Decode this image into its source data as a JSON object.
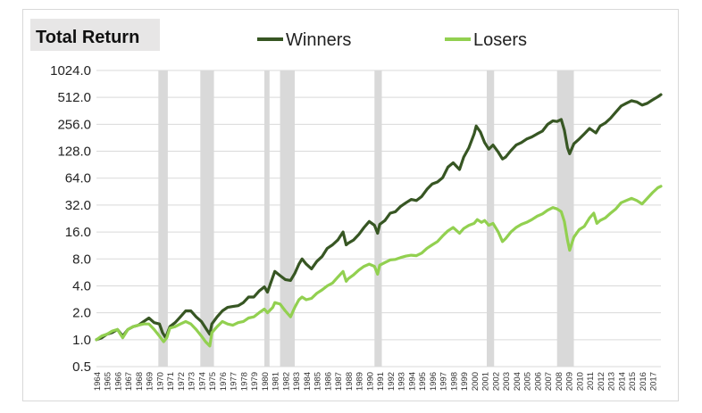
{
  "chart_data": {
    "type": "line",
    "title": "Total Return",
    "scale": "log2",
    "ylim": [
      0.5,
      1024
    ],
    "y_ticks": [
      "0.5",
      "1.0",
      "2.0",
      "4.0",
      "8.0",
      "16.0",
      "32.0",
      "64.0",
      "128.0",
      "256.0",
      "512.0",
      "1024.0"
    ],
    "y_tick_values": [
      0.5,
      1,
      2,
      4,
      8,
      16,
      32,
      64,
      128,
      256,
      512,
      1024
    ],
    "xlim": [
      1964,
      2017.8
    ],
    "x_ticks": [
      "1964",
      "1965",
      "1966",
      "1967",
      "1968",
      "1969",
      "1970",
      "1971",
      "1972",
      "1973",
      "1974",
      "1975",
      "1976",
      "1977",
      "1978",
      "1979",
      "1980",
      "1981",
      "1982",
      "1983",
      "1984",
      "1985",
      "1986",
      "1987",
      "1988",
      "1989",
      "1990",
      "1991",
      "1992",
      "1993",
      "1994",
      "1995",
      "1996",
      "1997",
      "1998",
      "1999",
      "2000",
      "2001",
      "2002",
      "2003",
      "2004",
      "2005",
      "2006",
      "2007",
      "2008",
      "2009",
      "2010",
      "2011",
      "2012",
      "2013",
      "2014",
      "2015",
      "2016",
      "2017"
    ],
    "legend_position": "top",
    "grid": "horizontal",
    "recessions": [
      [
        1969.9,
        1970.8
      ],
      [
        1973.9,
        1975.2
      ],
      [
        1980.0,
        1980.5
      ],
      [
        1981.5,
        1982.9
      ],
      [
        1990.5,
        1991.2
      ],
      [
        2001.2,
        2001.9
      ],
      [
        2007.9,
        2009.5
      ]
    ],
    "series": [
      {
        "name": "Winners",
        "color": "#375623",
        "points": [
          [
            1964.0,
            1.0
          ],
          [
            1964.5,
            1.05
          ],
          [
            1965.0,
            1.15
          ],
          [
            1965.5,
            1.2
          ],
          [
            1966.0,
            1.3
          ],
          [
            1966.5,
            1.1
          ],
          [
            1967.0,
            1.3
          ],
          [
            1967.5,
            1.4
          ],
          [
            1968.0,
            1.45
          ],
          [
            1968.5,
            1.6
          ],
          [
            1969.0,
            1.75
          ],
          [
            1969.5,
            1.55
          ],
          [
            1970.0,
            1.5
          ],
          [
            1970.3,
            1.2
          ],
          [
            1970.6,
            1.05
          ],
          [
            1971.0,
            1.4
          ],
          [
            1971.5,
            1.55
          ],
          [
            1972.0,
            1.8
          ],
          [
            1972.5,
            2.1
          ],
          [
            1973.0,
            2.1
          ],
          [
            1973.5,
            1.8
          ],
          [
            1974.0,
            1.6
          ],
          [
            1974.5,
            1.3
          ],
          [
            1974.8,
            1.15
          ],
          [
            1975.0,
            1.5
          ],
          [
            1975.5,
            1.8
          ],
          [
            1976.0,
            2.1
          ],
          [
            1976.5,
            2.3
          ],
          [
            1977.0,
            2.35
          ],
          [
            1977.5,
            2.4
          ],
          [
            1978.0,
            2.6
          ],
          [
            1978.5,
            3.0
          ],
          [
            1979.0,
            3.0
          ],
          [
            1979.5,
            3.5
          ],
          [
            1980.0,
            3.9
          ],
          [
            1980.3,
            3.4
          ],
          [
            1980.8,
            5.0
          ],
          [
            1981.0,
            5.8
          ],
          [
            1981.5,
            5.2
          ],
          [
            1982.0,
            4.7
          ],
          [
            1982.5,
            4.6
          ],
          [
            1982.9,
            5.5
          ],
          [
            1983.3,
            7.0
          ],
          [
            1983.6,
            8.0
          ],
          [
            1984.0,
            7.0
          ],
          [
            1984.5,
            6.2
          ],
          [
            1985.0,
            7.5
          ],
          [
            1985.5,
            8.5
          ],
          [
            1986.0,
            10.5
          ],
          [
            1986.5,
            11.5
          ],
          [
            1987.0,
            13.0
          ],
          [
            1987.5,
            16.0
          ],
          [
            1987.8,
            11.5
          ],
          [
            1988.0,
            12.0
          ],
          [
            1988.5,
            13.0
          ],
          [
            1989.0,
            15.0
          ],
          [
            1989.5,
            18.0
          ],
          [
            1990.0,
            21.0
          ],
          [
            1990.5,
            19.0
          ],
          [
            1990.8,
            15.5
          ],
          [
            1991.0,
            19.5
          ],
          [
            1991.5,
            21.5
          ],
          [
            1992.0,
            26.0
          ],
          [
            1992.5,
            27.0
          ],
          [
            1993.0,
            31.0
          ],
          [
            1993.5,
            34.0
          ],
          [
            1994.0,
            37.0
          ],
          [
            1994.5,
            36.0
          ],
          [
            1995.0,
            40.0
          ],
          [
            1995.5,
            48.0
          ],
          [
            1996.0,
            55.0
          ],
          [
            1996.5,
            58.0
          ],
          [
            1997.0,
            65.0
          ],
          [
            1997.5,
            85.0
          ],
          [
            1998.0,
            95.0
          ],
          [
            1998.6,
            80.0
          ],
          [
            1999.0,
            110.0
          ],
          [
            1999.5,
            140.0
          ],
          [
            2000.0,
            200.0
          ],
          [
            2000.2,
            245.0
          ],
          [
            2000.6,
            210.0
          ],
          [
            2001.0,
            160.0
          ],
          [
            2001.4,
            135.0
          ],
          [
            2001.8,
            150.0
          ],
          [
            2002.3,
            125.0
          ],
          [
            2002.7,
            105.0
          ],
          [
            2003.0,
            110.0
          ],
          [
            2003.5,
            130.0
          ],
          [
            2004.0,
            150.0
          ],
          [
            2004.5,
            160.0
          ],
          [
            2005.0,
            175.0
          ],
          [
            2005.5,
            185.0
          ],
          [
            2006.0,
            200.0
          ],
          [
            2006.5,
            215.0
          ],
          [
            2007.0,
            255.0
          ],
          [
            2007.5,
            280.0
          ],
          [
            2007.9,
            275.0
          ],
          [
            2008.3,
            290.0
          ],
          [
            2008.6,
            220.0
          ],
          [
            2008.9,
            140.0
          ],
          [
            2009.1,
            120.0
          ],
          [
            2009.5,
            155.0
          ],
          [
            2010.0,
            175.0
          ],
          [
            2010.5,
            200.0
          ],
          [
            2011.0,
            230.0
          ],
          [
            2011.6,
            205.0
          ],
          [
            2012.0,
            245.0
          ],
          [
            2012.5,
            265.0
          ],
          [
            2013.0,
            300.0
          ],
          [
            2013.5,
            350.0
          ],
          [
            2014.0,
            410.0
          ],
          [
            2014.5,
            440.0
          ],
          [
            2015.0,
            470.0
          ],
          [
            2015.5,
            455.0
          ],
          [
            2016.0,
            420.0
          ],
          [
            2016.5,
            440.0
          ],
          [
            2017.0,
            480.0
          ],
          [
            2017.5,
            520.0
          ],
          [
            2017.8,
            550.0
          ]
        ]
      },
      {
        "name": "Losers",
        "color": "#92d050",
        "points": [
          [
            1964.0,
            1.0
          ],
          [
            1964.5,
            1.1
          ],
          [
            1965.0,
            1.15
          ],
          [
            1965.5,
            1.25
          ],
          [
            1966.0,
            1.3
          ],
          [
            1966.5,
            1.05
          ],
          [
            1967.0,
            1.3
          ],
          [
            1967.5,
            1.4
          ],
          [
            1968.0,
            1.45
          ],
          [
            1968.5,
            1.5
          ],
          [
            1969.0,
            1.5
          ],
          [
            1969.5,
            1.3
          ],
          [
            1970.0,
            1.1
          ],
          [
            1970.4,
            0.95
          ],
          [
            1970.7,
            1.05
          ],
          [
            1971.0,
            1.35
          ],
          [
            1971.5,
            1.4
          ],
          [
            1972.0,
            1.5
          ],
          [
            1972.5,
            1.6
          ],
          [
            1973.0,
            1.5
          ],
          [
            1973.5,
            1.3
          ],
          [
            1974.0,
            1.1
          ],
          [
            1974.4,
            0.95
          ],
          [
            1974.8,
            0.85
          ],
          [
            1975.0,
            1.2
          ],
          [
            1975.5,
            1.4
          ],
          [
            1976.0,
            1.6
          ],
          [
            1976.5,
            1.5
          ],
          [
            1977.0,
            1.45
          ],
          [
            1977.5,
            1.55
          ],
          [
            1978.0,
            1.6
          ],
          [
            1978.5,
            1.75
          ],
          [
            1979.0,
            1.8
          ],
          [
            1979.5,
            2.0
          ],
          [
            1980.0,
            2.2
          ],
          [
            1980.3,
            2.0
          ],
          [
            1980.8,
            2.3
          ],
          [
            1981.0,
            2.6
          ],
          [
            1981.5,
            2.5
          ],
          [
            1982.0,
            2.1
          ],
          [
            1982.5,
            1.8
          ],
          [
            1982.9,
            2.3
          ],
          [
            1983.3,
            2.8
          ],
          [
            1983.6,
            3.0
          ],
          [
            1984.0,
            2.8
          ],
          [
            1984.5,
            2.9
          ],
          [
            1985.0,
            3.3
          ],
          [
            1985.5,
            3.6
          ],
          [
            1986.0,
            4.0
          ],
          [
            1986.5,
            4.3
          ],
          [
            1987.0,
            5.0
          ],
          [
            1987.5,
            5.8
          ],
          [
            1987.8,
            4.5
          ],
          [
            1988.0,
            4.8
          ],
          [
            1988.5,
            5.3
          ],
          [
            1989.0,
            6.0
          ],
          [
            1989.5,
            6.6
          ],
          [
            1990.0,
            7.0
          ],
          [
            1990.5,
            6.6
          ],
          [
            1990.8,
            5.4
          ],
          [
            1991.0,
            6.8
          ],
          [
            1991.5,
            7.3
          ],
          [
            1992.0,
            7.8
          ],
          [
            1992.5,
            7.9
          ],
          [
            1993.0,
            8.3
          ],
          [
            1993.5,
            8.6
          ],
          [
            1994.0,
            8.8
          ],
          [
            1994.5,
            8.7
          ],
          [
            1995.0,
            9.3
          ],
          [
            1995.5,
            10.5
          ],
          [
            1996.0,
            11.5
          ],
          [
            1996.5,
            12.5
          ],
          [
            1997.0,
            14.5
          ],
          [
            1997.5,
            16.5
          ],
          [
            1998.0,
            18.0
          ],
          [
            1998.6,
            15.5
          ],
          [
            1999.0,
            17.5
          ],
          [
            1999.5,
            19.0
          ],
          [
            2000.0,
            20.0
          ],
          [
            2000.3,
            22.0
          ],
          [
            2000.7,
            20.5
          ],
          [
            2001.0,
            21.5
          ],
          [
            2001.4,
            19.0
          ],
          [
            2001.8,
            20.0
          ],
          [
            2002.3,
            16.0
          ],
          [
            2002.7,
            12.5
          ],
          [
            2003.0,
            13.5
          ],
          [
            2003.5,
            16.0
          ],
          [
            2004.0,
            18.0
          ],
          [
            2004.5,
            19.5
          ],
          [
            2005.0,
            20.5
          ],
          [
            2005.5,
            22.0
          ],
          [
            2006.0,
            24.0
          ],
          [
            2006.5,
            25.5
          ],
          [
            2007.0,
            28.0
          ],
          [
            2007.5,
            30.0
          ],
          [
            2007.9,
            29.0
          ],
          [
            2008.3,
            27.0
          ],
          [
            2008.6,
            21.0
          ],
          [
            2008.9,
            13.0
          ],
          [
            2009.1,
            10.0
          ],
          [
            2009.5,
            14.0
          ],
          [
            2010.0,
            17.0
          ],
          [
            2010.5,
            18.5
          ],
          [
            2011.0,
            23.0
          ],
          [
            2011.4,
            26.0
          ],
          [
            2011.7,
            20.0
          ],
          [
            2012.0,
            21.5
          ],
          [
            2012.5,
            23.0
          ],
          [
            2013.0,
            26.0
          ],
          [
            2013.5,
            29.0
          ],
          [
            2014.0,
            34.0
          ],
          [
            2014.5,
            36.0
          ],
          [
            2015.0,
            38.0
          ],
          [
            2015.5,
            36.0
          ],
          [
            2016.0,
            33.0
          ],
          [
            2016.5,
            38.0
          ],
          [
            2017.0,
            44.0
          ],
          [
            2017.5,
            50.0
          ],
          [
            2017.8,
            52.0
          ]
        ]
      }
    ]
  }
}
